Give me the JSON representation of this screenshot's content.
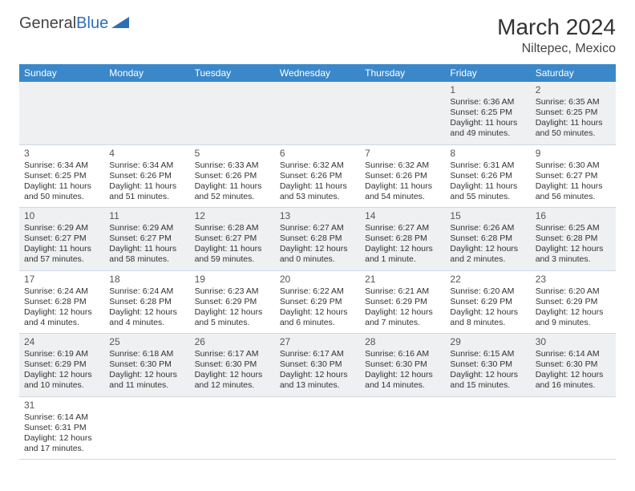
{
  "brand": {
    "part1": "General",
    "part2": "Blue"
  },
  "title": "March 2024",
  "location": "Niltepec, Mexico",
  "colors": {
    "header_bg": "#3a88c9",
    "row_alt_bg": "#eef0f2",
    "row_bg": "#ffffff",
    "border": "#cfd8e2",
    "brand_accent": "#2d6fb5",
    "text": "#333333"
  },
  "weekdays": [
    "Sunday",
    "Monday",
    "Tuesday",
    "Wednesday",
    "Thursday",
    "Friday",
    "Saturday"
  ],
  "weeks": [
    [
      null,
      null,
      null,
      null,
      null,
      {
        "n": "1",
        "sr": "Sunrise: 6:36 AM",
        "ss": "Sunset: 6:25 PM",
        "dl": "Daylight: 11 hours and 49 minutes."
      },
      {
        "n": "2",
        "sr": "Sunrise: 6:35 AM",
        "ss": "Sunset: 6:25 PM",
        "dl": "Daylight: 11 hours and 50 minutes."
      }
    ],
    [
      {
        "n": "3",
        "sr": "Sunrise: 6:34 AM",
        "ss": "Sunset: 6:25 PM",
        "dl": "Daylight: 11 hours and 50 minutes."
      },
      {
        "n": "4",
        "sr": "Sunrise: 6:34 AM",
        "ss": "Sunset: 6:26 PM",
        "dl": "Daylight: 11 hours and 51 minutes."
      },
      {
        "n": "5",
        "sr": "Sunrise: 6:33 AM",
        "ss": "Sunset: 6:26 PM",
        "dl": "Daylight: 11 hours and 52 minutes."
      },
      {
        "n": "6",
        "sr": "Sunrise: 6:32 AM",
        "ss": "Sunset: 6:26 PM",
        "dl": "Daylight: 11 hours and 53 minutes."
      },
      {
        "n": "7",
        "sr": "Sunrise: 6:32 AM",
        "ss": "Sunset: 6:26 PM",
        "dl": "Daylight: 11 hours and 54 minutes."
      },
      {
        "n": "8",
        "sr": "Sunrise: 6:31 AM",
        "ss": "Sunset: 6:26 PM",
        "dl": "Daylight: 11 hours and 55 minutes."
      },
      {
        "n": "9",
        "sr": "Sunrise: 6:30 AM",
        "ss": "Sunset: 6:27 PM",
        "dl": "Daylight: 11 hours and 56 minutes."
      }
    ],
    [
      {
        "n": "10",
        "sr": "Sunrise: 6:29 AM",
        "ss": "Sunset: 6:27 PM",
        "dl": "Daylight: 11 hours and 57 minutes."
      },
      {
        "n": "11",
        "sr": "Sunrise: 6:29 AM",
        "ss": "Sunset: 6:27 PM",
        "dl": "Daylight: 11 hours and 58 minutes."
      },
      {
        "n": "12",
        "sr": "Sunrise: 6:28 AM",
        "ss": "Sunset: 6:27 PM",
        "dl": "Daylight: 11 hours and 59 minutes."
      },
      {
        "n": "13",
        "sr": "Sunrise: 6:27 AM",
        "ss": "Sunset: 6:28 PM",
        "dl": "Daylight: 12 hours and 0 minutes."
      },
      {
        "n": "14",
        "sr": "Sunrise: 6:27 AM",
        "ss": "Sunset: 6:28 PM",
        "dl": "Daylight: 12 hours and 1 minute."
      },
      {
        "n": "15",
        "sr": "Sunrise: 6:26 AM",
        "ss": "Sunset: 6:28 PM",
        "dl": "Daylight: 12 hours and 2 minutes."
      },
      {
        "n": "16",
        "sr": "Sunrise: 6:25 AM",
        "ss": "Sunset: 6:28 PM",
        "dl": "Daylight: 12 hours and 3 minutes."
      }
    ],
    [
      {
        "n": "17",
        "sr": "Sunrise: 6:24 AM",
        "ss": "Sunset: 6:28 PM",
        "dl": "Daylight: 12 hours and 4 minutes."
      },
      {
        "n": "18",
        "sr": "Sunrise: 6:24 AM",
        "ss": "Sunset: 6:28 PM",
        "dl": "Daylight: 12 hours and 4 minutes."
      },
      {
        "n": "19",
        "sr": "Sunrise: 6:23 AM",
        "ss": "Sunset: 6:29 PM",
        "dl": "Daylight: 12 hours and 5 minutes."
      },
      {
        "n": "20",
        "sr": "Sunrise: 6:22 AM",
        "ss": "Sunset: 6:29 PM",
        "dl": "Daylight: 12 hours and 6 minutes."
      },
      {
        "n": "21",
        "sr": "Sunrise: 6:21 AM",
        "ss": "Sunset: 6:29 PM",
        "dl": "Daylight: 12 hours and 7 minutes."
      },
      {
        "n": "22",
        "sr": "Sunrise: 6:20 AM",
        "ss": "Sunset: 6:29 PM",
        "dl": "Daylight: 12 hours and 8 minutes."
      },
      {
        "n": "23",
        "sr": "Sunrise: 6:20 AM",
        "ss": "Sunset: 6:29 PM",
        "dl": "Daylight: 12 hours and 9 minutes."
      }
    ],
    [
      {
        "n": "24",
        "sr": "Sunrise: 6:19 AM",
        "ss": "Sunset: 6:29 PM",
        "dl": "Daylight: 12 hours and 10 minutes."
      },
      {
        "n": "25",
        "sr": "Sunrise: 6:18 AM",
        "ss": "Sunset: 6:30 PM",
        "dl": "Daylight: 12 hours and 11 minutes."
      },
      {
        "n": "26",
        "sr": "Sunrise: 6:17 AM",
        "ss": "Sunset: 6:30 PM",
        "dl": "Daylight: 12 hours and 12 minutes."
      },
      {
        "n": "27",
        "sr": "Sunrise: 6:17 AM",
        "ss": "Sunset: 6:30 PM",
        "dl": "Daylight: 12 hours and 13 minutes."
      },
      {
        "n": "28",
        "sr": "Sunrise: 6:16 AM",
        "ss": "Sunset: 6:30 PM",
        "dl": "Daylight: 12 hours and 14 minutes."
      },
      {
        "n": "29",
        "sr": "Sunrise: 6:15 AM",
        "ss": "Sunset: 6:30 PM",
        "dl": "Daylight: 12 hours and 15 minutes."
      },
      {
        "n": "30",
        "sr": "Sunrise: 6:14 AM",
        "ss": "Sunset: 6:30 PM",
        "dl": "Daylight: 12 hours and 16 minutes."
      }
    ],
    [
      {
        "n": "31",
        "sr": "Sunrise: 6:14 AM",
        "ss": "Sunset: 6:31 PM",
        "dl": "Daylight: 12 hours and 17 minutes."
      },
      null,
      null,
      null,
      null,
      null,
      null
    ]
  ]
}
